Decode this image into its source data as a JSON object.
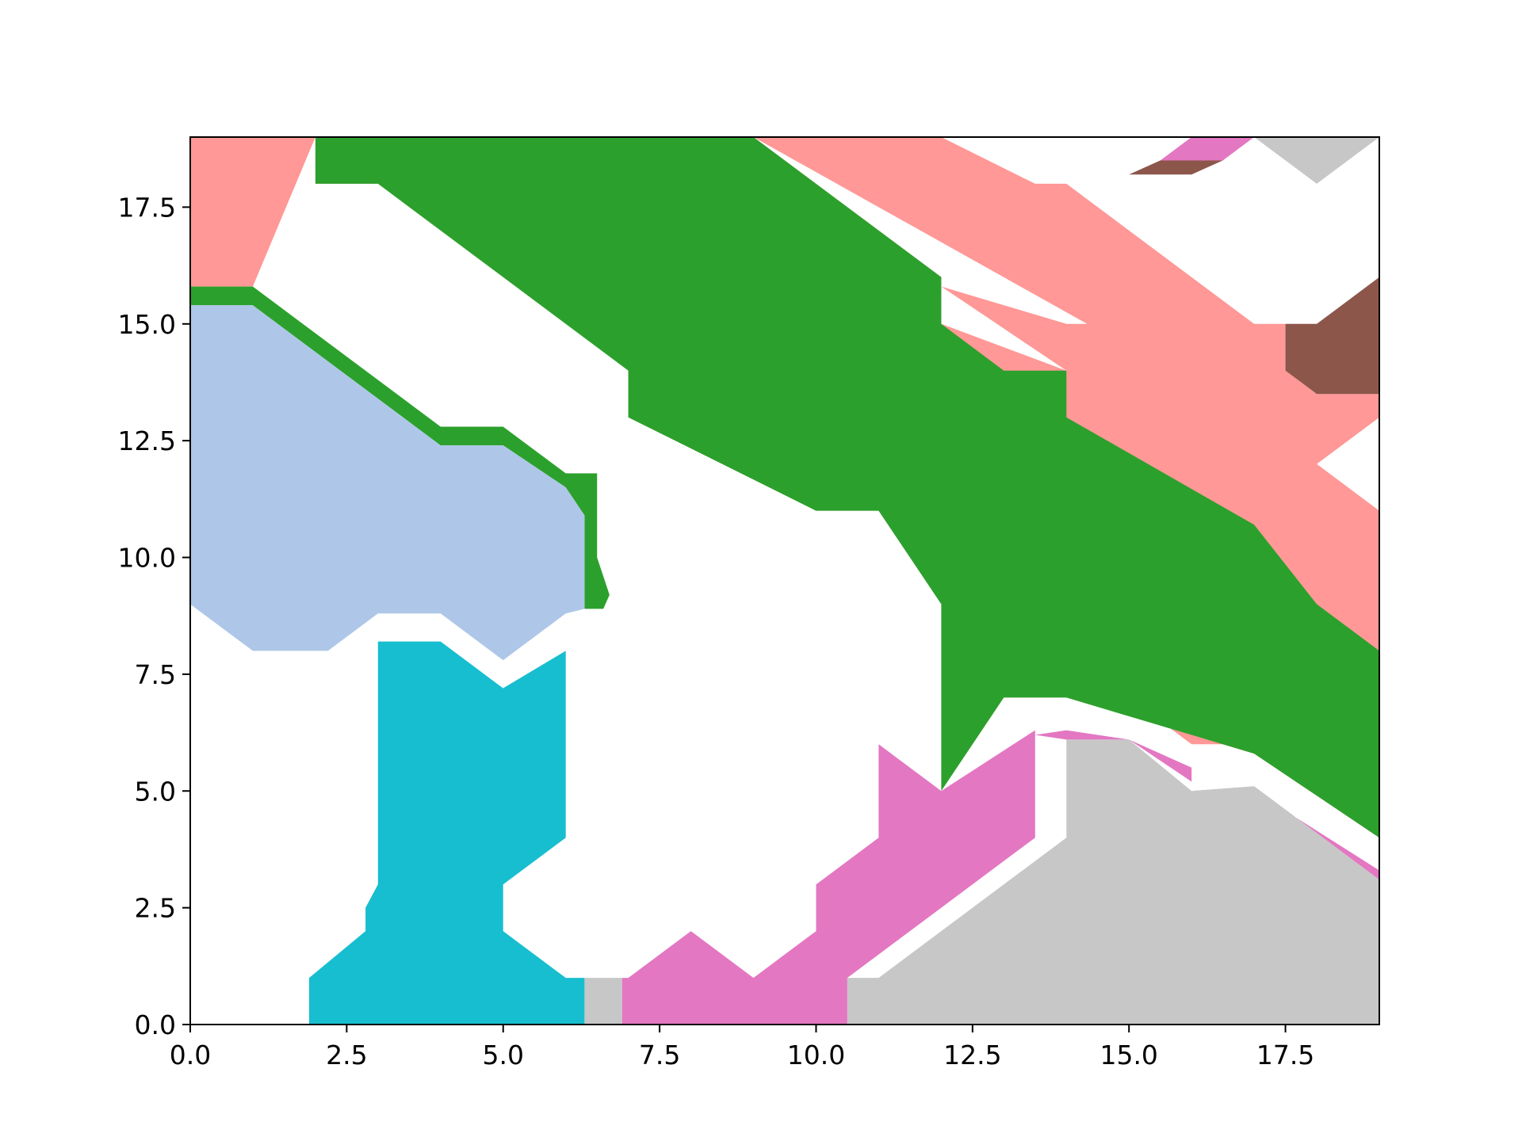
{
  "chart_data": {
    "type": "area",
    "title": "",
    "xlabel": "",
    "ylabel": "",
    "xlim": [
      0,
      19
    ],
    "ylim": [
      0,
      19
    ],
    "grid": false,
    "legend": "none",
    "x_ticks": [
      0.0,
      2.5,
      5.0,
      7.5,
      10.0,
      12.5,
      15.0,
      17.5
    ],
    "x_tick_labels": [
      "0.0",
      "2.5",
      "5.0",
      "7.5",
      "10.0",
      "12.5",
      "15.0",
      "17.5"
    ],
    "y_ticks": [
      0.0,
      2.5,
      5.0,
      7.5,
      10.0,
      12.5,
      15.0,
      17.5
    ],
    "y_tick_labels": [
      "0.0",
      "2.5",
      "5.0",
      "7.5",
      "10.0",
      "12.5",
      "15.0",
      "17.5"
    ],
    "colors": {
      "green": "#2ca02c",
      "pink": "#ff9896",
      "lightblue": "#aec7e8",
      "cyan": "#17becf",
      "magenta": "#e377c2",
      "grey": "#c7c7c7",
      "brown": "#8c564b"
    },
    "regions": [
      {
        "color": "pink",
        "points": [
          [
            0,
            19
          ],
          [
            2,
            19
          ],
          [
            2,
            18
          ],
          [
            3,
            18
          ],
          [
            7,
            15
          ],
          [
            7,
            13
          ],
          [
            8,
            13
          ],
          [
            10,
            11.5
          ],
          [
            11,
            11
          ],
          [
            12,
            11
          ],
          [
            14,
            8.5
          ],
          [
            15,
            7
          ],
          [
            16,
            6
          ],
          [
            16.5,
            6
          ],
          [
            17,
            5.8
          ],
          [
            19,
            4
          ],
          [
            19,
            11
          ],
          [
            18,
            12
          ],
          [
            19,
            13
          ],
          [
            19,
            13.5
          ],
          [
            18,
            13.5
          ],
          [
            17.5,
            14
          ],
          [
            17.5,
            15
          ],
          [
            17,
            15
          ],
          [
            15,
            17
          ],
          [
            14,
            18
          ],
          [
            13.5,
            18
          ],
          [
            12,
            19
          ],
          [
            9,
            19
          ],
          [
            15,
            14.5
          ],
          [
            15,
            15
          ],
          [
            14,
            15
          ],
          [
            12,
            15.8
          ],
          [
            14,
            14
          ],
          [
            12,
            15
          ],
          [
            12,
            16
          ],
          [
            9,
            19
          ],
          [
            2,
            19
          ],
          [
            1,
            15.8
          ],
          [
            0,
            15.8
          ]
        ]
      },
      {
        "color": "green",
        "points": [
          [
            2,
            19
          ],
          [
            9,
            19
          ],
          [
            12,
            16
          ],
          [
            12,
            15
          ],
          [
            13,
            14
          ],
          [
            14,
            14
          ],
          [
            14,
            13
          ],
          [
            17,
            10.7
          ],
          [
            18,
            9
          ],
          [
            19,
            8
          ],
          [
            19,
            4
          ],
          [
            17,
            5.8
          ],
          [
            14,
            7
          ],
          [
            13,
            7
          ],
          [
            12,
            5
          ],
          [
            12,
            9
          ],
          [
            11,
            11
          ],
          [
            10,
            11
          ],
          [
            7,
            13
          ],
          [
            7,
            14
          ],
          [
            3,
            18
          ],
          [
            2,
            18
          ]
        ]
      },
      {
        "color": "green",
        "points": [
          [
            0,
            15.8
          ],
          [
            1,
            15.8
          ],
          [
            4,
            12.8
          ],
          [
            5,
            12.8
          ],
          [
            6,
            11.8
          ],
          [
            6.5,
            11.8
          ],
          [
            6.5,
            10
          ],
          [
            6.7,
            9.2
          ],
          [
            6.6,
            8.9
          ],
          [
            6.3,
            8.9
          ],
          [
            6.3,
            10.9
          ],
          [
            6,
            11.5
          ],
          [
            5,
            12.4
          ],
          [
            4,
            12.4
          ],
          [
            1,
            15.4
          ],
          [
            0,
            15.4
          ]
        ]
      },
      {
        "color": "lightblue",
        "points": [
          [
            0,
            15.4
          ],
          [
            1,
            15.4
          ],
          [
            4,
            12.4
          ],
          [
            5,
            12.4
          ],
          [
            6,
            11.5
          ],
          [
            6.3,
            10.9
          ],
          [
            6.3,
            8.9
          ],
          [
            6,
            8.8
          ],
          [
            5,
            7.8
          ],
          [
            4,
            8.8
          ],
          [
            3,
            8.8
          ],
          [
            2.2,
            8
          ],
          [
            1,
            8
          ],
          [
            0,
            9
          ]
        ]
      },
      {
        "color": "cyan",
        "points": [
          [
            1.9,
            0
          ],
          [
            6.3,
            0
          ],
          [
            6.3,
            1
          ],
          [
            6,
            1
          ],
          [
            5,
            2
          ],
          [
            5,
            3
          ],
          [
            6,
            4
          ],
          [
            6,
            8
          ],
          [
            5,
            7.2
          ],
          [
            4,
            8.2
          ],
          [
            3,
            8.2
          ],
          [
            3,
            3
          ],
          [
            2.8,
            2.5
          ],
          [
            2.8,
            2
          ],
          [
            1.9,
            1
          ]
        ]
      },
      {
        "color": "magenta",
        "points": [
          [
            6.9,
            0
          ],
          [
            10.5,
            0
          ],
          [
            10.5,
            1
          ],
          [
            13.5,
            4
          ],
          [
            13.5,
            6.2
          ],
          [
            14,
            6.3
          ],
          [
            15,
            6.1
          ],
          [
            16,
            5.5
          ],
          [
            16,
            5
          ],
          [
            17,
            5
          ],
          [
            19,
            3.3
          ],
          [
            19,
            3.1
          ],
          [
            17,
            5.1
          ],
          [
            16,
            5
          ],
          [
            16,
            5.2
          ],
          [
            15,
            6.1
          ],
          [
            14,
            6.1
          ],
          [
            13.5,
            6.2
          ],
          [
            13.5,
            6.3
          ],
          [
            12,
            5
          ],
          [
            11,
            6
          ],
          [
            11,
            4
          ],
          [
            10,
            3
          ],
          [
            10,
            2
          ],
          [
            9,
            1
          ],
          [
            8,
            2
          ],
          [
            7,
            1
          ],
          [
            6.9,
            1
          ]
        ]
      },
      {
        "color": "grey",
        "points": [
          [
            10.5,
            0
          ],
          [
            19,
            0
          ],
          [
            19,
            3.1
          ],
          [
            17,
            5.1
          ],
          [
            16,
            5
          ],
          [
            15,
            6.1
          ],
          [
            14,
            6.1
          ],
          [
            14,
            4
          ],
          [
            11,
            1
          ],
          [
            10.5,
            1
          ]
        ]
      },
      {
        "color": "grey",
        "points": [
          [
            6.3,
            0
          ],
          [
            6.9,
            0
          ],
          [
            6.9,
            1
          ],
          [
            6.3,
            1
          ]
        ]
      },
      {
        "color": "brown",
        "points": [
          [
            17.5,
            14
          ],
          [
            18,
            13.5
          ],
          [
            19,
            13.5
          ],
          [
            19,
            16
          ],
          [
            18,
            15
          ],
          [
            17.5,
            15
          ]
        ]
      },
      {
        "color": "grey",
        "points": [
          [
            16.7,
            19
          ],
          [
            19,
            19
          ],
          [
            18,
            18
          ],
          [
            17,
            19
          ]
        ]
      },
      {
        "color": "brown",
        "points": [
          [
            15,
            18.2
          ],
          [
            16,
            18.2
          ],
          [
            16.5,
            18.5
          ],
          [
            16,
            18.5
          ],
          [
            15.5,
            18.5
          ]
        ]
      },
      {
        "color": "magenta",
        "points": [
          [
            15.5,
            18.5
          ],
          [
            16.5,
            18.5
          ],
          [
            17,
            19
          ],
          [
            16,
            19
          ]
        ]
      }
    ]
  }
}
